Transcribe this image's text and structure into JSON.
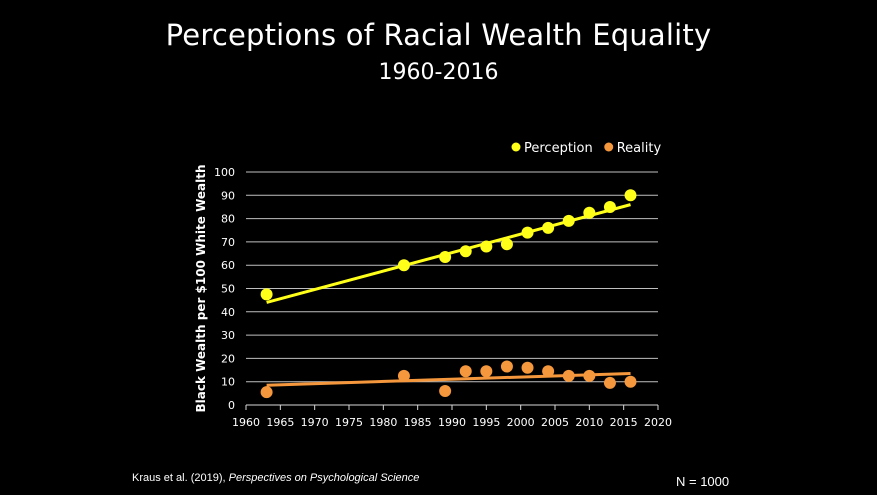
{
  "title": "Perceptions of Racial Wealth Equality",
  "subtitle": "1960-2016",
  "citation": {
    "authors": "Kraus et al. (2019), ",
    "journal": "Perspectives on Psychological Science"
  },
  "sample_size": "N = 1000",
  "chart_data": {
    "type": "scatter",
    "title": "",
    "xlabel": "",
    "ylabel": "Black Wealth per $100 White Wealth",
    "xlim": [
      1960,
      2020
    ],
    "ylim": [
      0,
      100
    ],
    "xticks": [
      1960,
      1965,
      1970,
      1975,
      1980,
      1985,
      1990,
      1995,
      2000,
      2005,
      2010,
      2015,
      2020
    ],
    "yticks": [
      0,
      10,
      20,
      30,
      40,
      50,
      60,
      70,
      80,
      90,
      100
    ],
    "grid": "horizontal",
    "legend_position": "top-right",
    "series": [
      {
        "name": "Perception",
        "color": "#ffff1a",
        "points": [
          [
            1963,
            47.5
          ],
          [
            1983,
            60
          ],
          [
            1989,
            63.5
          ],
          [
            1992,
            66
          ],
          [
            1995,
            68
          ],
          [
            1998,
            69
          ],
          [
            2001,
            74
          ],
          [
            2004,
            76
          ],
          [
            2007,
            79
          ],
          [
            2010,
            82.5
          ],
          [
            2013,
            85
          ],
          [
            2016,
            90
          ]
        ],
        "trendline": [
          [
            1963,
            44
          ],
          [
            2016,
            86
          ]
        ]
      },
      {
        "name": "Reality",
        "color": "#f5973c",
        "points": [
          [
            1963,
            5.5
          ],
          [
            1983,
            12.5
          ],
          [
            1989,
            6
          ],
          [
            1992,
            14.5
          ],
          [
            1995,
            14.5
          ],
          [
            1998,
            16.5
          ],
          [
            2001,
            16
          ],
          [
            2004,
            14.5
          ],
          [
            2007,
            12.5
          ],
          [
            2010,
            12.5
          ],
          [
            2013,
            9.5
          ],
          [
            2016,
            10
          ]
        ],
        "trendline": [
          [
            1963,
            8.5
          ],
          [
            2016,
            13.5
          ]
        ]
      }
    ]
  }
}
